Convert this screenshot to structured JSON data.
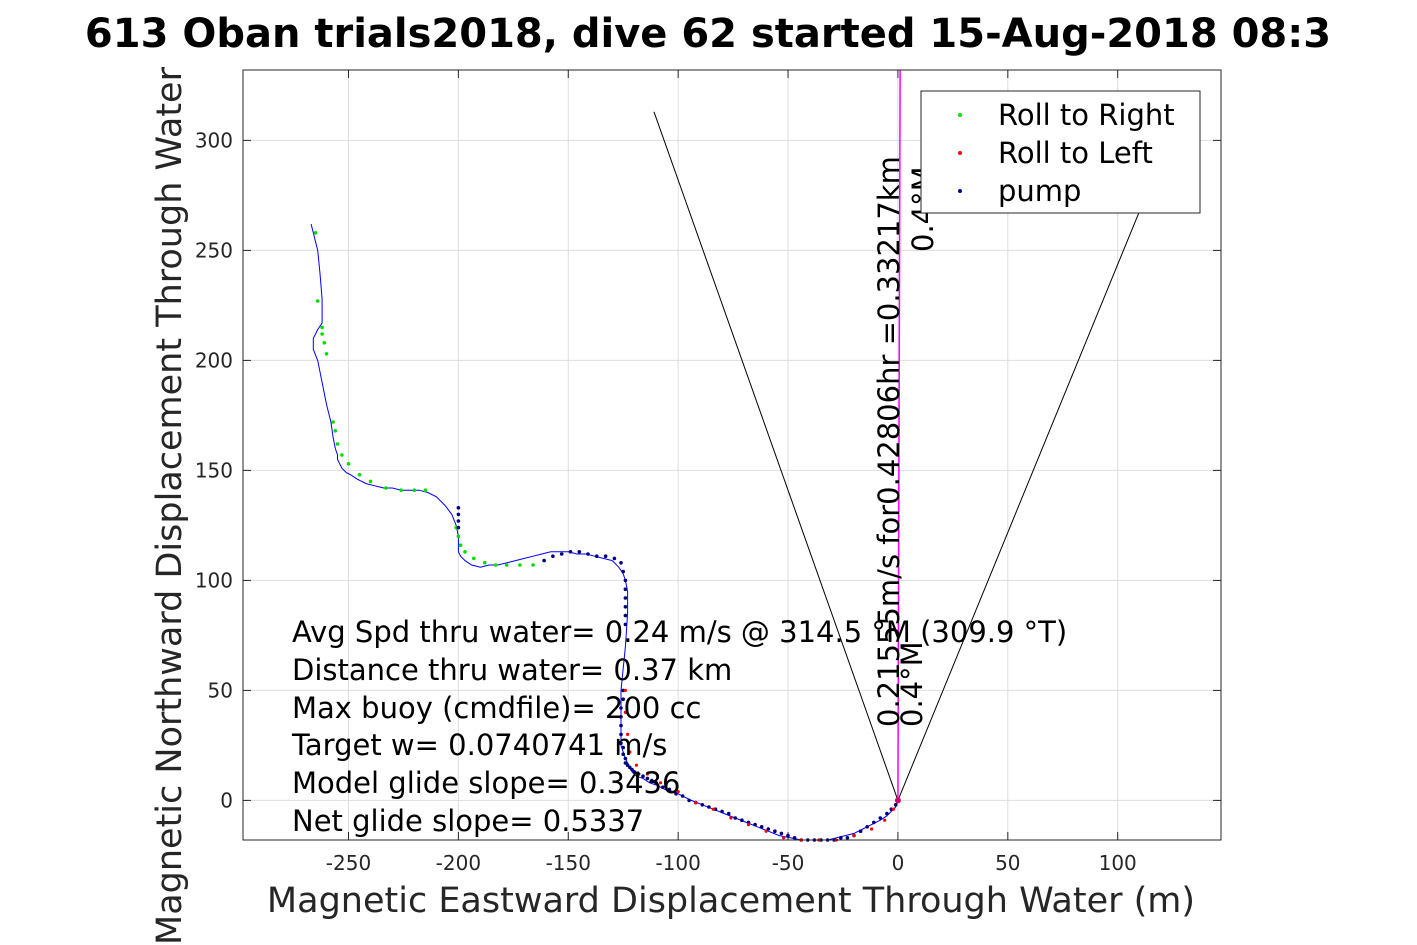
{
  "chart_data": {
    "type": "line",
    "title": "613 Oban trials2018, dive 62 started 15-Aug-2018 08:3",
    "xlabel": "Magnetic Eastward Displacement Through Water (m)",
    "ylabel": "Magnetic Northward Displacement Through Water",
    "xlim": [
      -298,
      147
    ],
    "ylim": [
      -18,
      332
    ],
    "xticks": [
      -250,
      -200,
      -150,
      -100,
      -50,
      0,
      50,
      100
    ],
    "yticks": [
      0,
      50,
      100,
      150,
      200,
      250,
      300
    ],
    "xtick_labels": [
      "-250",
      "-200",
      "-150",
      "-100",
      "-50",
      "0",
      "50",
      "100"
    ],
    "ytick_labels": [
      "0",
      "50",
      "100",
      "150",
      "200",
      "250",
      "300"
    ],
    "grid": true,
    "legend_position": "top-right",
    "legend": [
      "Roll to Right",
      "Roll to Left",
      "pump"
    ],
    "colors": {
      "track": "#0000ff",
      "roll_right": "#00dd00",
      "roll_left": "#ff0000",
      "pump": "#000080",
      "ascent": "#cc0066",
      "current_line": "#ff00ff",
      "fan": "#000000"
    },
    "track": {
      "x": [
        -267,
        -266,
        -264,
        -263,
        -262,
        -262,
        -264,
        -266,
        -266,
        -264,
        -262,
        -260,
        -258,
        -257,
        -256,
        -255,
        -255,
        -254,
        -253,
        -251,
        -249,
        -246,
        -242,
        -238,
        -234,
        -230,
        -226,
        -222,
        -218,
        -214,
        -210,
        -206,
        -203,
        -201,
        -200,
        -200,
        -200,
        -199,
        -197,
        -194,
        -190,
        -186,
        -182,
        -178,
        -174,
        -170,
        -166,
        -162,
        -158,
        -154,
        -150,
        -146,
        -142,
        -138,
        -134,
        -130,
        -127,
        -125,
        -124,
        -123,
        -123,
        -124,
        -125,
        -126,
        -126,
        -126,
        -126,
        -126,
        -126,
        -125,
        -124,
        -123,
        -122,
        -121,
        -119,
        -116,
        -113,
        -110,
        -106,
        -102,
        -98,
        -94,
        -89,
        -84,
        -79,
        -74,
        -69,
        -64,
        -59,
        -54,
        -49,
        -44,
        -40,
        -36,
        -32,
        -28,
        -24,
        -20,
        -16,
        -12,
        -8,
        -5,
        -3,
        -1,
        0
      ],
      "y": [
        262,
        258,
        250,
        240,
        228,
        217,
        214,
        210,
        205,
        200,
        190,
        180,
        172,
        165,
        160,
        157,
        155,
        153,
        151,
        149,
        148,
        146,
        144,
        143,
        142,
        142,
        141,
        141,
        141,
        140,
        138,
        134,
        130,
        125,
        120,
        116,
        113,
        111,
        109,
        107,
        106,
        107,
        107,
        108,
        109,
        110,
        111,
        112,
        113,
        113,
        113,
        112,
        112,
        111,
        110,
        109,
        106,
        103,
        100,
        95,
        85,
        70,
        60,
        50,
        45,
        40,
        35,
        30,
        25,
        22,
        19,
        17,
        15,
        13,
        11,
        10,
        8,
        7,
        5,
        4,
        2,
        0,
        -2,
        -4,
        -6,
        -8,
        -10,
        -12,
        -14,
        -16,
        -17,
        -18,
        -18,
        -18,
        -18,
        -17,
        -16,
        -15,
        -13,
        -11,
        -9,
        -7,
        -5,
        -3,
        0
      ]
    },
    "markers": {
      "roll_right": {
        "x": [
          -265,
          -264,
          -262,
          -262,
          -261,
          -260,
          -257,
          -256,
          -255,
          -253,
          -250,
          -245,
          -240,
          -233,
          -226,
          -220,
          -215,
          -201,
          -200,
          -199,
          -197,
          -193,
          -188,
          -183,
          -178,
          -172,
          -166
        ],
        "y": [
          258,
          227,
          215,
          212,
          208,
          203,
          172,
          168,
          162,
          157,
          153,
          148,
          145,
          142,
          141,
          141,
          141,
          124,
          120,
          116,
          113,
          110,
          108,
          107,
          107,
          107,
          107
        ]
      },
      "roll_left": {
        "x": [
          -124,
          -124,
          -123,
          -122,
          -119,
          -114,
          -108,
          -100,
          -92,
          -84,
          -76,
          -68,
          -60,
          -52,
          -44,
          -36,
          -28,
          -20,
          -12,
          -6,
          -2
        ],
        "y": [
          50,
          40,
          30,
          22,
          16,
          12,
          8,
          4,
          -1,
          -4,
          -8,
          -11,
          -14,
          -17,
          -18,
          -18,
          -18,
          -16,
          -13,
          -9,
          -4
        ]
      },
      "pump": {
        "x": [
          -200,
          -200,
          -200,
          -200,
          -161,
          -157,
          -153,
          -149,
          -145,
          -141,
          -137,
          -133,
          -129,
          -126,
          -125,
          -124,
          -124,
          -124,
          -124,
          -124,
          -124,
          -125,
          -125,
          -126,
          -126,
          -126,
          -126,
          -126,
          -125,
          -125,
          -124,
          -124,
          -123,
          -122,
          -121,
          -120,
          -118,
          -116,
          -114,
          -112,
          -110,
          -107,
          -104,
          -101,
          -98,
          -95,
          -92,
          -89,
          -86,
          -83,
          -80,
          -77,
          -74,
          -71,
          -68,
          -65,
          -62,
          -59,
          -56,
          -53,
          -50,
          -47,
          -44,
          -41,
          -38,
          -35,
          -32,
          -29,
          -26,
          -23,
          -20,
          -17,
          -14,
          -11,
          -8,
          -5,
          -3,
          -1
        ],
        "y": [
          133,
          130,
          127,
          124,
          109,
          111,
          112,
          113,
          113,
          112,
          111,
          111,
          110,
          108,
          104,
          100,
          96,
          92,
          88,
          84,
          80,
          50,
          46,
          42,
          38,
          34,
          30,
          26,
          24,
          21,
          19,
          17,
          16,
          15,
          14,
          13,
          12,
          11,
          10,
          9,
          8,
          6,
          5,
          3,
          2,
          0,
          -1,
          -2,
          -3,
          -4,
          -5,
          -6,
          -8,
          -9,
          -10,
          -11,
          -12,
          -13,
          -14,
          -15,
          -16,
          -17,
          -18,
          -18,
          -18,
          -18,
          -18,
          -18,
          -17,
          -17,
          -16,
          -14,
          -12,
          -10,
          -8,
          -6,
          -4,
          -2
        ]
      }
    },
    "current_line": {
      "x": [
        0,
        1
      ],
      "y": [
        0,
        332
      ]
    },
    "fan_lines": [
      {
        "x": [
          0,
          -111
        ],
        "y": [
          0,
          313
        ]
      },
      {
        "x": [
          0,
          110
        ],
        "y": [
          0,
          268
        ]
      }
    ],
    "annotations": {
      "rotated": [
        "0.21555m/s for0.42806hr =0.33217km",
        "0.4°M",
        "0.4°M"
      ],
      "stats": [
        "Avg Spd thru water=  0.24 m/s @ 314.5 °M (309.9 °T)",
        "Distance thru water=  0.37 km",
        "Max buoy (cmdfile)= 200 cc",
        "Target w= 0.0740741 m/s",
        "Model glide slope= 0.3436",
        "Net glide slope= 0.5337"
      ]
    }
  }
}
